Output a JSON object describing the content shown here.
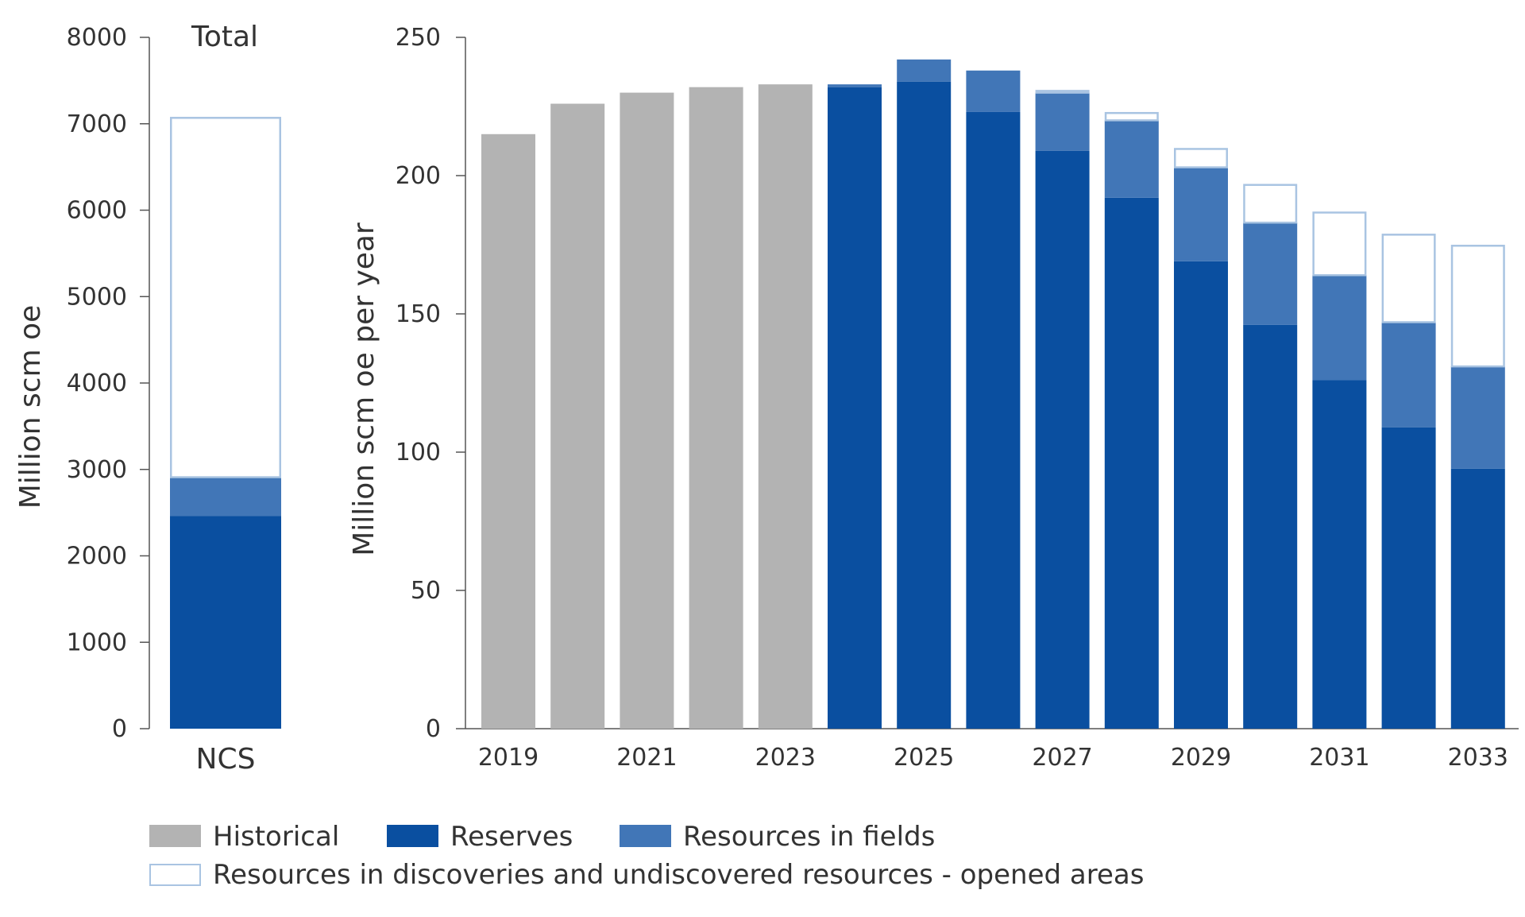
{
  "colors": {
    "historical": "#b3b3b3",
    "reserves": "#0a4fa0",
    "resources_in_fields": "#4176b7",
    "discoveries_undiscovered_stroke": "#a9c4e2",
    "axis": "#555555",
    "text": "#333333"
  },
  "legend": {
    "historical": "Historical",
    "reserves": "Reserves",
    "resources_in_fields": "Resources in fields",
    "discoveries_undiscovered": "Resources in discoveries and undiscovered resources - opened areas"
  },
  "chart_data": [
    {
      "type": "bar",
      "stacked": true,
      "title": "Total",
      "ylabel": "Million scm oe",
      "ylim": [
        0,
        8000
      ],
      "yticks": [
        0,
        1000,
        2000,
        3000,
        4000,
        5000,
        6000,
        7000,
        8000
      ],
      "categories": [
        "NCS"
      ],
      "series": [
        {
          "name": "Reserves",
          "key": "reserves",
          "values": [
            2460
          ]
        },
        {
          "name": "Resources in fields",
          "key": "resources_in_fields",
          "values": [
            450
          ]
        },
        {
          "name": "Resources in discoveries and undiscovered resources - opened areas",
          "key": "discoveries_undiscovered",
          "values": [
            4170
          ]
        }
      ]
    },
    {
      "type": "bar",
      "stacked": true,
      "ylabel": "Million scm oe per year",
      "ylim": [
        0,
        250
      ],
      "yticks": [
        0,
        50,
        100,
        150,
        200,
        250
      ],
      "categories": [
        "2019",
        "2020",
        "2021",
        "2022",
        "2023",
        "2024",
        "2025",
        "2026",
        "2027",
        "2028",
        "2029",
        "2030",
        "2031",
        "2032",
        "2033"
      ],
      "xtick_labels": [
        "2019",
        "",
        "2021",
        "",
        "2023",
        "",
        "2025",
        "",
        "2027",
        "",
        "2029",
        "",
        "2031",
        "",
        "2033"
      ],
      "series": [
        {
          "name": "Historical",
          "key": "historical",
          "values": [
            215,
            226,
            230,
            232,
            233,
            0,
            0,
            0,
            0,
            0,
            0,
            0,
            0,
            0,
            0
          ]
        },
        {
          "name": "Reserves",
          "key": "reserves",
          "values": [
            0,
            0,
            0,
            0,
            0,
            232,
            234,
            223,
            209,
            192,
            169,
            146,
            126,
            109,
            94
          ]
        },
        {
          "name": "Resources in fields",
          "key": "resources_in_fields",
          "values": [
            0,
            0,
            0,
            0,
            0,
            1,
            8,
            15,
            21,
            28,
            34,
            37,
            38,
            38,
            37
          ]
        },
        {
          "name": "Resources in discoveries and undiscovered resources - opened areas",
          "key": "discoveries_undiscovered",
          "values": [
            0,
            0,
            0,
            0,
            0,
            0,
            0,
            0,
            1,
            3,
            7,
            14,
            23,
            32,
            44
          ]
        }
      ]
    }
  ]
}
